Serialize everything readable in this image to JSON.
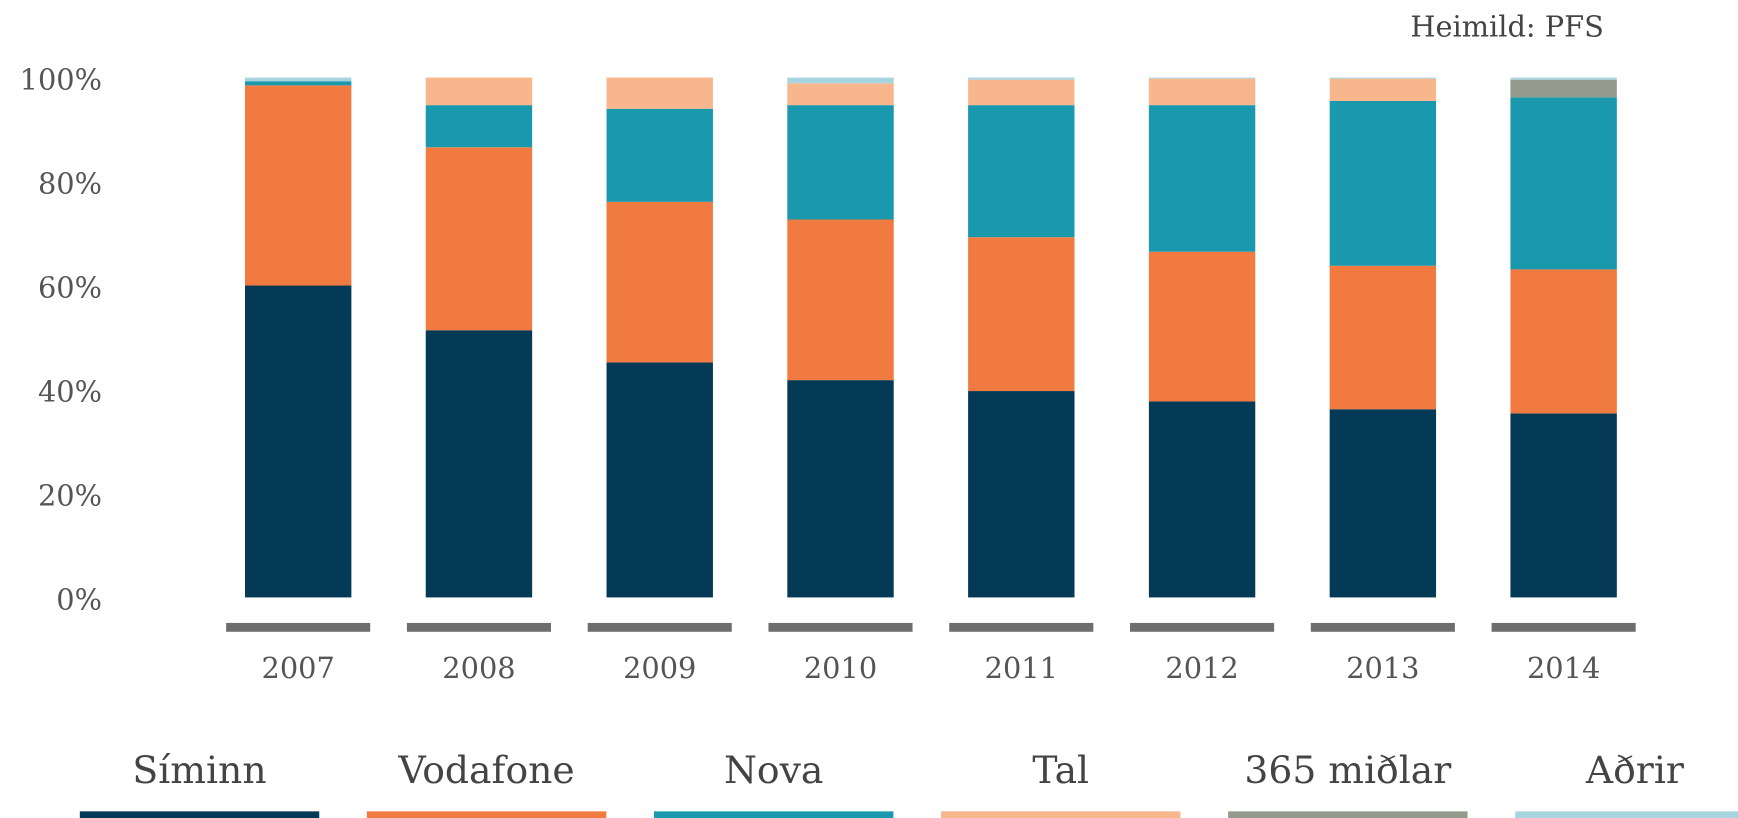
{
  "chart_data": {
    "type": "stacked_bar",
    "source": "Heimild: PFS",
    "categories": [
      "2007",
      "2008",
      "2009",
      "2010",
      "2011",
      "2012",
      "2013",
      "2014"
    ],
    "series": [
      {
        "name": "Síminn",
        "color": "#053a57",
        "values": [
          60,
          51.4,
          45.2,
          41.8,
          39.7,
          37.7,
          36.2,
          35.4
        ]
      },
      {
        "name": "Vodafone",
        "color": "#f07a3f",
        "values": [
          38.5,
          35.2,
          30.9,
          30.9,
          29.6,
          28.8,
          27.6,
          27.7
        ]
      },
      {
        "name": "Nova",
        "color": "#1a98ad",
        "values": [
          0.8,
          8.1,
          17.9,
          22,
          25.4,
          28.2,
          31.7,
          33.1
        ]
      },
      {
        "name": "Tal",
        "color": "#f8b68c",
        "values": [
          0,
          5.3,
          6,
          4.2,
          4.9,
          5.1,
          4.3,
          0
        ]
      },
      {
        "name": "365 miðlar",
        "color": "#959b8c",
        "values": [
          0,
          0,
          0,
          0,
          0,
          0,
          0,
          3.4
        ]
      },
      {
        "name": "Aðrir",
        "color": "#a8d4e0",
        "values": [
          0.7,
          0,
          0,
          1.1,
          0.4,
          0.2,
          0.2,
          0.4
        ]
      }
    ],
    "ylim": [
      0,
      100
    ],
    "yticks": [
      {
        "value": 0,
        "label": "0%"
      },
      {
        "value": 20,
        "label": "20%"
      },
      {
        "value": 40,
        "label": "40%"
      },
      {
        "value": 60,
        "label": "60%"
      },
      {
        "value": 80,
        "label": "80%"
      },
      {
        "value": 100,
        "label": "100%"
      }
    ],
    "legend": "bottom"
  }
}
